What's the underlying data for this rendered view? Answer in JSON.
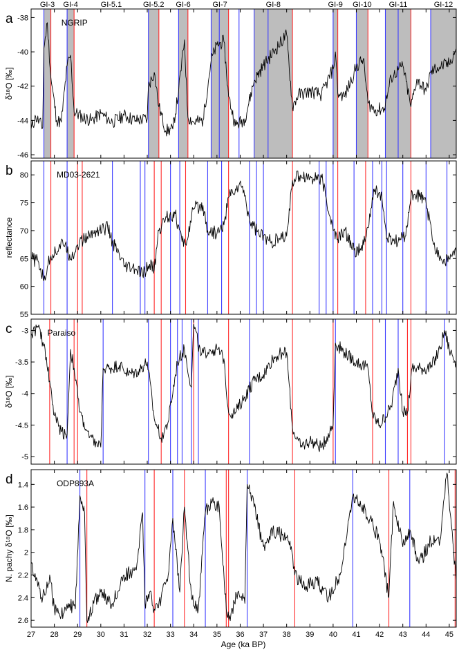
{
  "chart_data": {
    "type": "line",
    "xlabel": "Age (ka BP)",
    "xlim": [
      27,
      45.3
    ],
    "xticks": [
      "27",
      "28",
      "29",
      "30",
      "31",
      "32",
      "33",
      "34",
      "35",
      "36",
      "37",
      "38",
      "39",
      "40",
      "41",
      "42",
      "43",
      "44",
      "45"
    ],
    "interstadials": [
      {
        "label": "GI-3",
        "start": 27.55,
        "end": 27.85
      },
      {
        "label": "GI-4",
        "start": 28.55,
        "end": 28.85
      },
      {
        "label": "GI-5.1",
        "start": null,
        "end": null
      },
      {
        "label": "GI-5.2",
        "start": 32.05,
        "end": 32.5
      },
      {
        "label": "GI-6",
        "start": 33.35,
        "end": 33.75
      },
      {
        "label": "GI-7",
        "start": 34.75,
        "end": 35.5
      },
      {
        "label": "GI-8",
        "start": 36.6,
        "end": 38.25
      },
      {
        "label": "GI-9",
        "start": 40.0,
        "end": 40.2
      },
      {
        "label": "GI-10",
        "start": 41.0,
        "end": 41.5
      },
      {
        "label": "GI-11",
        "start": 42.25,
        "end": 43.35
      },
      {
        "label": "GI-12",
        "start": 44.2,
        "end": 45.3
      }
    ],
    "panels": [
      {
        "letter": "a",
        "title": "NGRIP",
        "ylabel": "δ¹⁸O [‰]",
        "ylim": [
          -46.2,
          -37.5
        ],
        "reversed": false,
        "yticks": [
          "-46",
          "-44",
          "-42",
          "-40",
          "-38"
        ],
        "blue_lines": [
          27.55,
          28.55,
          32.05,
          33.35,
          34.75,
          35.1,
          35.95,
          36.6,
          37.2,
          40.0,
          41.0,
          42.25,
          42.8,
          44.2
        ],
        "red_lines": [
          27.85,
          28.85,
          32.5,
          33.75,
          35.5,
          38.25,
          40.2,
          41.5,
          43.35
        ],
        "x": [
          27.0,
          27.2,
          27.5,
          27.55,
          27.7,
          27.85,
          28.1,
          28.3,
          28.55,
          28.7,
          28.85,
          29.2,
          29.6,
          30.0,
          30.5,
          31.0,
          31.5,
          32.0,
          32.05,
          32.3,
          32.5,
          32.8,
          33.1,
          33.35,
          33.6,
          33.75,
          34.0,
          34.4,
          34.75,
          35.0,
          35.3,
          35.5,
          35.8,
          36.2,
          36.6,
          37.0,
          37.5,
          38.0,
          38.25,
          38.5,
          39.0,
          39.5,
          40.0,
          40.1,
          40.2,
          40.5,
          41.0,
          41.3,
          41.5,
          41.8,
          42.2,
          42.5,
          43.0,
          43.35,
          43.6,
          44.0,
          44.2,
          44.5,
          45.0,
          45.3
        ],
        "y": [
          -44.5,
          -43.8,
          -44.4,
          -39.8,
          -38.3,
          -41.5,
          -44.0,
          -44.1,
          -40.8,
          -40.2,
          -43.5,
          -43.8,
          -44.0,
          -43.6,
          -44.1,
          -43.7,
          -44.0,
          -43.9,
          -42.0,
          -41.2,
          -43.2,
          -44.6,
          -44.5,
          -42.3,
          -39.3,
          -43.8,
          -44.1,
          -44.0,
          -40.5,
          -39.6,
          -39.4,
          -42.6,
          -44.3,
          -43.9,
          -41.7,
          -40.8,
          -39.9,
          -39.0,
          -43.2,
          -42.5,
          -42.3,
          -42.5,
          -41.0,
          -40.0,
          -42.4,
          -42.6,
          -40.9,
          -40.4,
          -43.0,
          -43.4,
          -43.3,
          -41.5,
          -40.8,
          -43.2,
          -41.6,
          -42.3,
          -41.2,
          -40.9,
          -40.7,
          -39.8
        ]
      },
      {
        "letter": "b",
        "title": "MD03-2621",
        "ylabel": "reflectance",
        "ylim": [
          55,
          82.5
        ],
        "reversed": true,
        "yticks": [
          "55",
          "60",
          "65",
          "70",
          "75",
          "80"
        ],
        "blue_lines": [
          27.55,
          28.55,
          30.5,
          31.7,
          31.9,
          33.0,
          33.4,
          34.6,
          35.2,
          36.4,
          36.7,
          37.0,
          39.4,
          39.7,
          40.0,
          40.9,
          41.7,
          42.1,
          42.3,
          43.0,
          44.0,
          44.9
        ],
        "red_lines": [
          27.85,
          29.0,
          29.2,
          32.3,
          32.6,
          33.65,
          35.5,
          38.25,
          40.2,
          41.4,
          43.35
        ],
        "x": [
          27.0,
          27.3,
          27.55,
          27.7,
          27.85,
          28.2,
          28.5,
          28.55,
          28.8,
          29.0,
          29.3,
          29.8,
          30.3,
          30.5,
          31.0,
          31.5,
          31.8,
          32.1,
          32.3,
          32.5,
          32.8,
          33.2,
          33.5,
          33.65,
          34.0,
          34.4,
          34.6,
          35.0,
          35.3,
          35.5,
          35.8,
          36.1,
          36.4,
          36.8,
          37.3,
          37.8,
          38.0,
          38.25,
          38.6,
          39.0,
          39.5,
          40.0,
          40.2,
          40.5,
          40.9,
          41.2,
          41.4,
          41.8,
          42.1,
          42.3,
          42.8,
          43.1,
          43.35,
          43.6,
          44.0,
          44.3,
          44.7,
          45.0,
          45.3
        ],
        "y": [
          65,
          64.5,
          61,
          63.5,
          65.5,
          67,
          68,
          66,
          65.5,
          67.5,
          68.5,
          70,
          70.5,
          68,
          63.5,
          63,
          62,
          64,
          63,
          70,
          72.5,
          73,
          68,
          67.5,
          74,
          74.5,
          70,
          69.5,
          71,
          76,
          77.5,
          78,
          72,
          69.5,
          68,
          68.5,
          69,
          79,
          80,
          79.5,
          79.5,
          70,
          68.5,
          70,
          66.5,
          66.5,
          68.5,
          77.5,
          76,
          68.5,
          68,
          69,
          76,
          76.5,
          75,
          68,
          64.5,
          65,
          66
        ]
      },
      {
        "letter": "c",
        "title": "Paraiso",
        "ylabel": "δ¹⁸O [‰]",
        "ylim": [
          -5.12,
          -2.82
        ],
        "reversed": false,
        "yticks": [
          "-5",
          "-4.5",
          "-4",
          "-3.5",
          "-3"
        ],
        "blue_lines": [
          28.55,
          30.1,
          32.05,
          33.0,
          33.3,
          33.5,
          33.9,
          34.2,
          36.4,
          40.1,
          42.25,
          42.8,
          44.8
        ],
        "red_lines": [
          27.8,
          28.85,
          29.0,
          32.6,
          34.0,
          35.5,
          38.25,
          40.0,
          41.7,
          43.2,
          43.35
        ],
        "x": [
          27.0,
          27.3,
          27.6,
          27.8,
          28.0,
          28.3,
          28.55,
          28.7,
          28.85,
          29.1,
          29.5,
          30.0,
          30.1,
          30.4,
          30.8,
          31.2,
          31.6,
          32.0,
          32.3,
          32.6,
          32.9,
          33.3,
          33.6,
          33.9,
          34.0,
          34.3,
          34.7,
          35.0,
          35.3,
          35.5,
          35.8,
          36.2,
          36.6,
          37.0,
          37.4,
          37.8,
          38.0,
          38.25,
          38.6,
          39.0,
          39.5,
          40.0,
          40.1,
          40.5,
          41.0,
          41.5,
          41.7,
          42.0,
          42.5,
          42.8,
          43.0,
          43.2,
          43.4,
          43.8,
          44.2,
          44.6,
          44.8,
          45.0,
          45.3
        ],
        "y": [
          -3.05,
          -2.95,
          -3.3,
          -3.8,
          -4.35,
          -4.6,
          -4.65,
          -3.3,
          -3.6,
          -4.3,
          -4.7,
          -4.85,
          -3.6,
          -3.6,
          -3.55,
          -3.7,
          -3.65,
          -3.5,
          -4.4,
          -4.7,
          -4.45,
          -3.5,
          -3.3,
          -3.9,
          -2.9,
          -3.4,
          -3.3,
          -3.3,
          -3.45,
          -4.3,
          -4.3,
          -4.05,
          -3.8,
          -3.7,
          -3.45,
          -3.35,
          -3.35,
          -4.55,
          -4.85,
          -4.75,
          -4.85,
          -4.5,
          -3.2,
          -3.35,
          -3.5,
          -3.6,
          -4.35,
          -4.5,
          -4.2,
          -3.6,
          -4.3,
          -4.3,
          -3.6,
          -3.6,
          -3.6,
          -3.3,
          -3.0,
          -3.3,
          -3.5
        ]
      },
      {
        "letter": "d",
        "title": "ODP893A",
        "ylabel": "N. pachy δ¹⁸O [‰]",
        "ylim": [
          2.66,
          1.27
        ],
        "reversed": true,
        "yticks": [
          "1.4",
          "1.6",
          "1.8",
          "2",
          "2.2",
          "2.4",
          "2.6"
        ],
        "blue_lines": [
          29.1,
          31.9,
          33.1,
          34.5,
          36.3,
          40.85,
          43.3
        ],
        "red_lines": [
          29.4,
          32.3,
          33.6,
          35.4,
          35.5,
          38.35,
          42.4,
          45.25
        ],
        "x": [
          27.0,
          27.2,
          27.5,
          27.8,
          28.0,
          28.3,
          28.6,
          28.9,
          29.1,
          29.3,
          29.4,
          29.7,
          30.0,
          30.5,
          31.0,
          31.5,
          31.8,
          31.9,
          32.1,
          32.3,
          32.6,
          32.9,
          33.1,
          33.4,
          33.6,
          33.9,
          34.2,
          34.5,
          34.8,
          35.1,
          35.4,
          35.6,
          35.9,
          36.2,
          36.3,
          36.6,
          37.0,
          37.4,
          37.8,
          38.2,
          38.35,
          38.8,
          39.3,
          39.8,
          40.3,
          40.85,
          41.2,
          41.6,
          42.0,
          42.4,
          42.6,
          43.0,
          43.3,
          43.7,
          44.2,
          44.6,
          44.9,
          45.3
        ],
        "y": [
          2.1,
          2.25,
          2.4,
          2.2,
          2.5,
          2.55,
          2.45,
          2.5,
          1.5,
          1.65,
          2.6,
          2.45,
          2.35,
          2.45,
          2.2,
          2.15,
          1.65,
          2.45,
          2.35,
          2.5,
          2.4,
          2.2,
          1.7,
          2.35,
          1.6,
          2.4,
          2.5,
          1.65,
          1.55,
          1.6,
          2.5,
          2.55,
          2.35,
          2.45,
          1.4,
          1.6,
          1.95,
          1.8,
          1.85,
          1.95,
          2.2,
          2.3,
          2.25,
          2.4,
          2.2,
          1.5,
          1.6,
          1.7,
          1.9,
          2.4,
          1.55,
          1.95,
          1.8,
          2.1,
          1.9,
          1.9,
          1.3,
          2.25
        ]
      }
    ]
  }
}
